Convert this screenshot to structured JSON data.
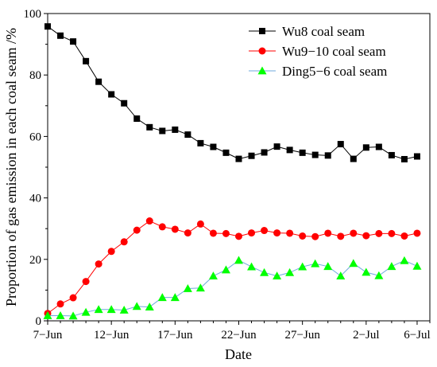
{
  "chart_data": {
    "type": "line",
    "title": "",
    "xlabel": "Date",
    "ylabel": "Proportion of gas emission in each coal seam /%",
    "ylim": [
      0,
      100
    ],
    "yticks": [
      "0",
      "20",
      "40",
      "60",
      "80",
      "100"
    ],
    "xticks": [
      {
        "label": "7−Jun",
        "day": 7
      },
      {
        "label": "12−Jun",
        "day": 12
      },
      {
        "label": "17−Jun",
        "day": 17
      },
      {
        "label": "22−Jun",
        "day": 22
      },
      {
        "label": "27−Jun",
        "day": 27
      },
      {
        "label": "2−Jul",
        "day": 32
      },
      {
        "label": "6−Jul",
        "day": 36
      }
    ],
    "x_start": "7-Jun",
    "x_end": "6-Jul",
    "xlim": [
      7,
      37
    ],
    "legend_position": "top-right",
    "series": [
      {
        "name": "Wu8 coal seam",
        "color": "#000000",
        "marker": "square",
        "values": [
          95.8,
          92.8,
          90.9,
          84.5,
          77.8,
          73.7,
          70.8,
          65.8,
          63.0,
          61.8,
          62.2,
          60.6,
          57.8,
          56.6,
          54.7,
          52.7,
          53.7,
          54.8,
          56.7,
          55.6,
          54.7,
          54.0,
          53.8,
          57.5,
          52.7,
          56.4,
          56.6,
          53.9,
          52.6,
          53.5
        ]
      },
      {
        "name": "Wu9−10 coal seam",
        "color": "#ff0000",
        "marker": "circle",
        "values": [
          2.4,
          5.5,
          7.5,
          12.8,
          18.5,
          22.6,
          25.7,
          29.5,
          32.5,
          30.6,
          29.8,
          28.6,
          31.5,
          28.5,
          28.4,
          27.5,
          28.6,
          29.4,
          28.6,
          28.5,
          27.6,
          27.4,
          28.5,
          27.5,
          28.5,
          27.7,
          28.4,
          28.4,
          27.6,
          28.5
        ]
      },
      {
        "name": "Ding5−6 coal seam",
        "color": "#00ff00",
        "line_color": "#6fa8dc",
        "marker": "triangle",
        "values": [
          1.7,
          1.7,
          1.6,
          2.8,
          3.7,
          3.7,
          3.5,
          4.7,
          4.5,
          7.6,
          7.6,
          10.5,
          10.7,
          14.6,
          16.6,
          19.7,
          17.6,
          15.7,
          14.6,
          15.7,
          17.6,
          18.6,
          17.7,
          14.6,
          18.7,
          15.8,
          14.7,
          17.7,
          19.6,
          17.8
        ]
      }
    ]
  }
}
